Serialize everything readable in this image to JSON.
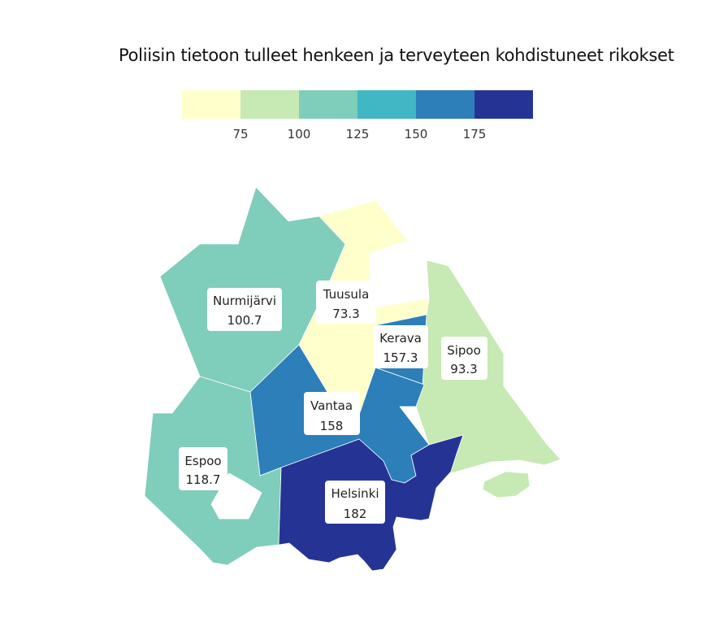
{
  "title": "Poliisin tietoon tulleet henkeen ja terveyteen kohdistuneet rikokset",
  "legend": {
    "bins": [
      {
        "color": "#ffffcc"
      },
      {
        "color": "#c7e9b4"
      },
      {
        "color": "#7fcdbb"
      },
      {
        "color": "#41b6c4"
      },
      {
        "color": "#2c7fb8"
      },
      {
        "color": "#253494"
      }
    ],
    "ticks": [
      "75",
      "100",
      "125",
      "150",
      "175"
    ]
  },
  "regions": [
    {
      "id": "nurmijarvi",
      "name": "Nurmijärvi",
      "value": "100.7",
      "color": "#7fcdbb"
    },
    {
      "id": "tuusula",
      "name": "Tuusula",
      "value": "73.3",
      "color": "#ffffcc"
    },
    {
      "id": "kerava",
      "name": "Kerava",
      "value": "157.3",
      "color": "#2c7fb8"
    },
    {
      "id": "sipoo",
      "name": "Sipoo",
      "value": "93.3",
      "color": "#c7e9b4"
    },
    {
      "id": "vantaa",
      "name": "Vantaa",
      "value": "158",
      "color": "#2c7fb8"
    },
    {
      "id": "espoo",
      "name": "Espoo",
      "value": "118.7",
      "color": "#7fcdbb"
    },
    {
      "id": "helsinki",
      "name": "Helsinki",
      "value": "182",
      "color": "#253494"
    }
  ]
}
